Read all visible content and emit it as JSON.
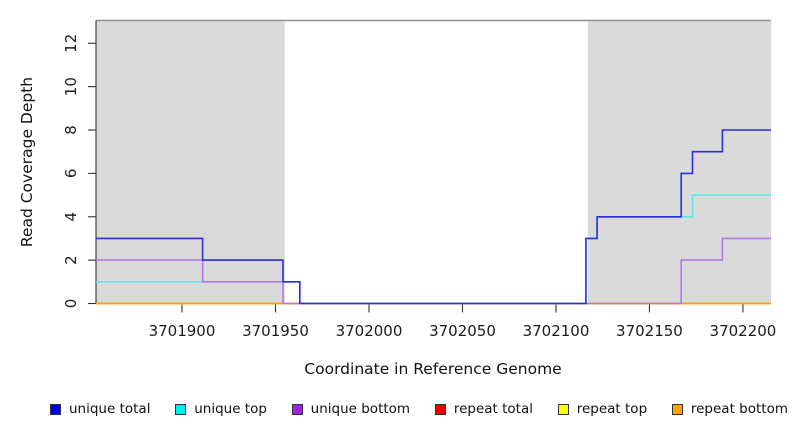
{
  "plot": {
    "background": "#ffffff",
    "shading_color": "#dadada",
    "frame_color": "#8f8f8f",
    "axis_color": "#333333"
  },
  "chart_data": {
    "type": "line",
    "subtype": "step-coverage",
    "title": "",
    "xlabel": "Coordinate in Reference Genome",
    "ylabel": "Read Coverage Depth",
    "xlim": [
      3701854,
      3702215
    ],
    "ylim": [
      0,
      13.05
    ],
    "x_ticks": [
      3701900,
      3701950,
      3702000,
      3702050,
      3702100,
      3702150,
      3702200
    ],
    "y_ticks": [
      0,
      2,
      4,
      6,
      8,
      10,
      12
    ],
    "grid": "off",
    "legend_position": "bottom",
    "repeat_regions": [
      {
        "start": 3701854,
        "end": 3701955
      },
      {
        "start": 3702117,
        "end": 3702215
      }
    ],
    "series": [
      {
        "name": "repeat total",
        "color": "#e60000",
        "points": [
          [
            3701854,
            0
          ],
          [
            3702215,
            0
          ]
        ]
      },
      {
        "name": "repeat top",
        "color": "#ffff00",
        "points": [
          [
            3701854,
            0
          ],
          [
            3702215,
            0
          ]
        ]
      },
      {
        "name": "repeat bottom",
        "color": "#ff9f00",
        "points": [
          [
            3701854,
            0
          ],
          [
            3702215,
            0
          ]
        ]
      },
      {
        "name": "unique top",
        "color": "#5fe6e6",
        "points": [
          [
            3701854,
            1
          ],
          [
            3701963,
            1
          ],
          [
            3701963,
            0
          ],
          [
            3702116,
            0
          ],
          [
            3702116,
            3
          ],
          [
            3702122,
            3
          ],
          [
            3702122,
            4
          ],
          [
            3702173,
            4
          ],
          [
            3702173,
            5
          ],
          [
            3702215,
            5
          ]
        ]
      },
      {
        "name": "unique bottom",
        "color": "#b678ea",
        "points": [
          [
            3701854,
            2
          ],
          [
            3701911,
            2
          ],
          [
            3701911,
            1
          ],
          [
            3701954,
            1
          ],
          [
            3701954,
            0
          ],
          [
            3702167,
            0
          ],
          [
            3702167,
            2
          ],
          [
            3702189,
            2
          ],
          [
            3702189,
            3
          ],
          [
            3702215,
            3
          ]
        ]
      },
      {
        "name": "unique total",
        "color": "#2a2ee0",
        "points": [
          [
            3701854,
            3
          ],
          [
            3701911,
            3
          ],
          [
            3701911,
            2
          ],
          [
            3701954,
            2
          ],
          [
            3701954,
            1
          ],
          [
            3701963,
            1
          ],
          [
            3701963,
            0
          ],
          [
            3702116,
            0
          ],
          [
            3702116,
            3
          ],
          [
            3702122,
            3
          ],
          [
            3702122,
            4
          ],
          [
            3702167,
            4
          ],
          [
            3702167,
            6
          ],
          [
            3702173,
            6
          ],
          [
            3702173,
            7
          ],
          [
            3702189,
            7
          ],
          [
            3702189,
            8
          ],
          [
            3702215,
            8
          ]
        ]
      }
    ]
  },
  "legend": {
    "items": [
      {
        "label": "unique total",
        "color": "#0000e0"
      },
      {
        "label": "unique top",
        "color": "#00eeee"
      },
      {
        "label": "unique bottom",
        "color": "#a020f0"
      },
      {
        "label": "repeat total",
        "color": "#ee0000"
      },
      {
        "label": "repeat top",
        "color": "#ffff00"
      },
      {
        "label": "repeat bottom",
        "color": "#ffa500"
      }
    ]
  }
}
